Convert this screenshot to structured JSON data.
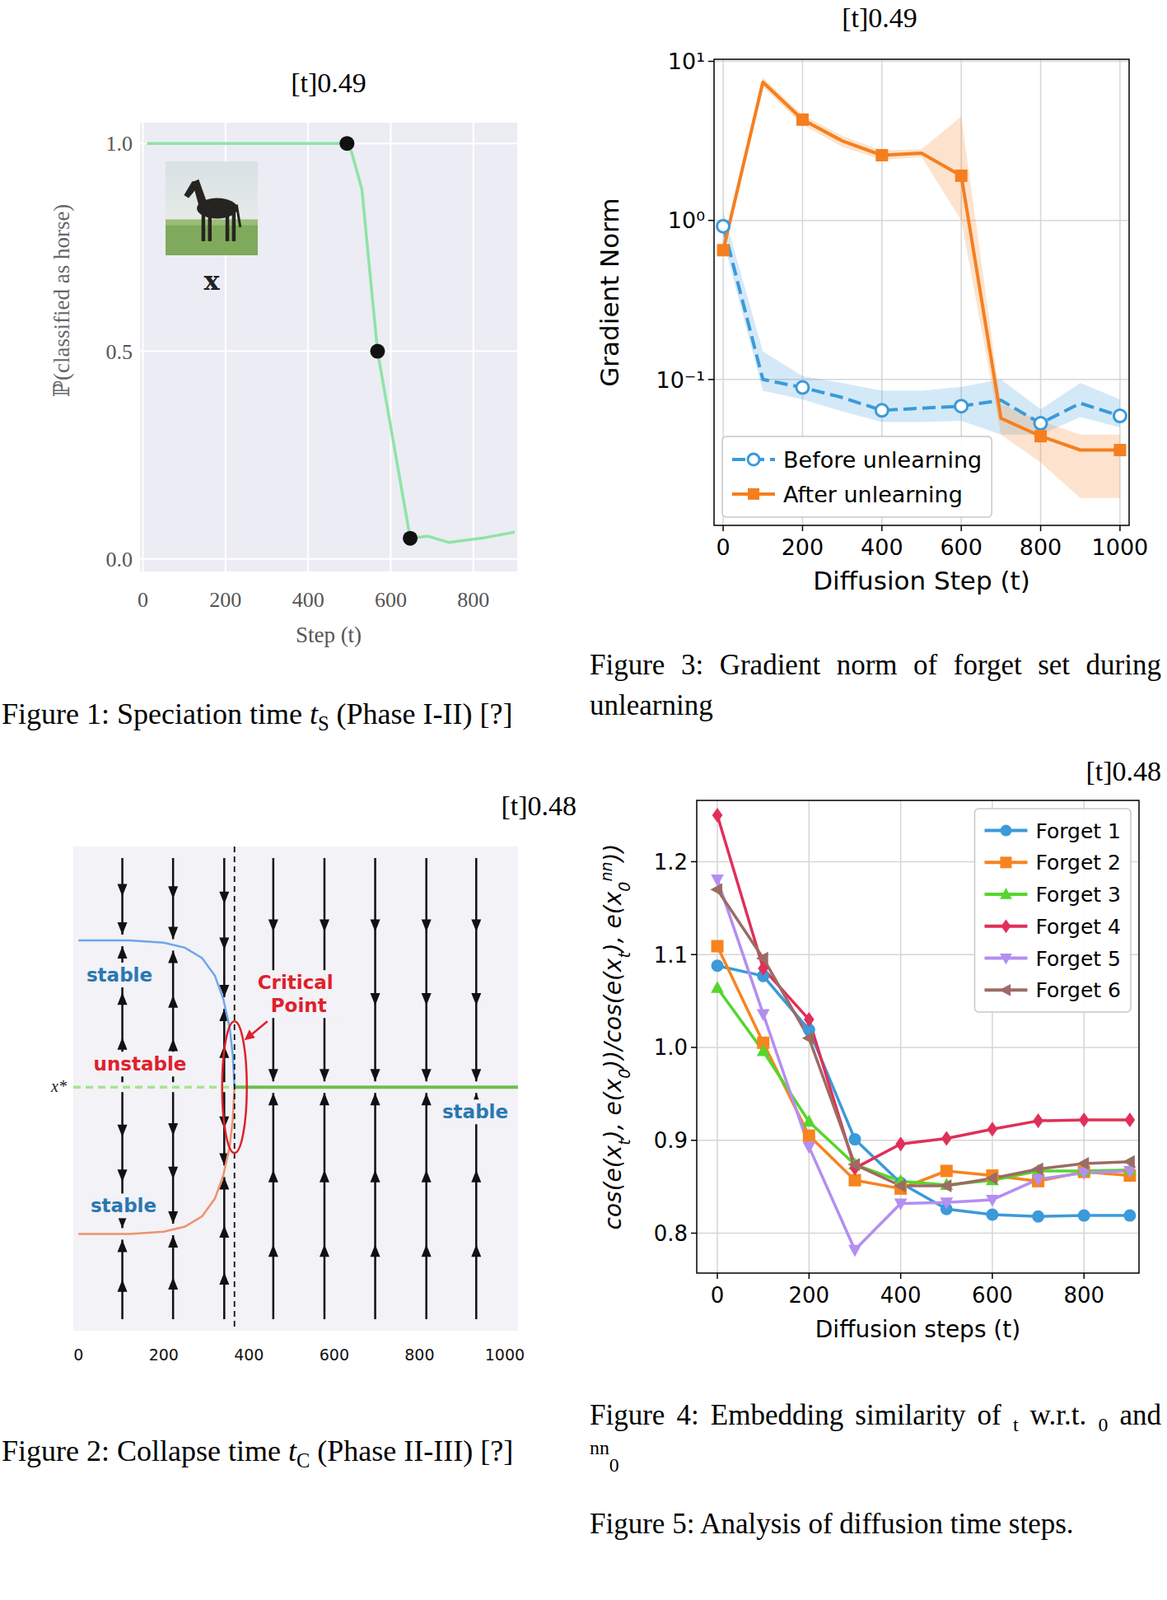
{
  "chart_data": [
    {
      "type": "line",
      "panel_title": "[t]0.49",
      "x_label": "Step (t)",
      "y_label": "ℙ(classified as horse)",
      "inset_label": "x",
      "xlim": [
        -7,
        906
      ],
      "xticks": [
        0,
        200,
        400,
        600,
        800
      ],
      "ylim": [
        -0.03,
        1.05
      ],
      "yticks": [
        {
          "value": 0,
          "label": "0.0"
        },
        0.5,
        {
          "value": 1,
          "label": "1.0"
        }
      ],
      "grid": true,
      "series": [
        {
          "type": "line",
          "color": "#8fe3a6",
          "x": [
            10,
            494,
            505,
            530,
            568,
            647,
            690,
            740,
            820,
            900
          ],
          "values": [
            1,
            1,
            0.98,
            0.89,
            0.5,
            0.05,
            0.055,
            0.04,
            0.05,
            0.065
          ]
        },
        {
          "type": "scatter",
          "color": "#111111",
          "marker": "circle",
          "x": [
            494,
            568,
            647
          ],
          "values": [
            1,
            0.5,
            0.05
          ]
        }
      ],
      "caption": [
        {
          "text": "Figure 1: Speciation time "
        },
        {
          "text": "t",
          "style": "italic"
        },
        {
          "text": "S",
          "style": "sub"
        },
        {
          "text": " (Phase I-II) [?]"
        }
      ]
    },
    {
      "type": "line",
      "log": "y",
      "panel_title": "[t]0.49",
      "x_label": "Diffusion Step (t)",
      "y_label": "Gradient Norm",
      "x": [
        0,
        100,
        200,
        300,
        400,
        500,
        600,
        700,
        800,
        900,
        1000
      ],
      "xlim": [
        -23,
        1023
      ],
      "xticks": [
        0,
        200,
        400,
        600,
        800,
        1000
      ],
      "ylim": [
        0.0121,
        10.3
      ],
      "yticks": [
        {
          "value": 0.1,
          "label": "10⁻¹"
        },
        {
          "value": 1,
          "label": "10⁰"
        },
        {
          "value": 10,
          "label": "10¹"
        }
      ],
      "grid": true,
      "legend": "lower left",
      "series": [
        {
          "name": "Before unlearning",
          "color": "#3b9ad9",
          "line_style": "dashed",
          "marker": "open-circle",
          "marked_x": [
            0,
            200,
            400,
            600,
            800,
            1000
          ],
          "values": [
            0.92,
            0.1,
            0.089,
            0.077,
            0.064,
            0.066,
            0.068,
            0.074,
            0.053,
            0.071,
            0.059
          ],
          "lower": [
            0.75,
            0.085,
            0.075,
            0.063,
            0.054,
            0.054,
            0.055,
            0.045,
            0.045,
            0.058,
            0.05
          ],
          "upper": [
            1.15,
            0.15,
            0.105,
            0.095,
            0.085,
            0.085,
            0.09,
            0.1,
            0.065,
            0.095,
            0.075
          ]
        },
        {
          "name": "After unlearning",
          "color": "#f57f1f",
          "line_style": "solid",
          "marker": "square",
          "marked_x": [
            0,
            200,
            400,
            600,
            800,
            1000
          ],
          "values": [
            0.65,
            7.4,
            4.3,
            3.16,
            2.57,
            2.65,
            1.91,
            0.057,
            0.044,
            0.036,
            0.036
          ],
          "lower": [
            0.6,
            6.9,
            4.0,
            2.9,
            2.4,
            2.5,
            1.0,
            0.045,
            0.03,
            0.018,
            0.018
          ],
          "upper": [
            0.7,
            7.9,
            4.6,
            3.4,
            2.75,
            2.8,
            4.5,
            0.07,
            0.055,
            0.045,
            0.045
          ]
        }
      ],
      "caption": [
        {
          "text": "Figure 3: Gradient norm of forget set during unlearning"
        }
      ]
    },
    {
      "type": "bifurcation",
      "panel_title": "[t]0.48",
      "xlim": [
        -12,
        1031
      ],
      "xticks": [
        0,
        200,
        400,
        600,
        800,
        1000
      ],
      "tick_labels": "x",
      "ylim": [
        -1.66,
        1.64
      ],
      "x_star": 0,
      "x_star_label": "x*",
      "critical_t": 366,
      "critical_label": "Critical Point",
      "region_labels": [
        "stable",
        "unstable",
        "stable",
        "stable"
      ],
      "field_t": [
        103,
        222,
        342,
        457,
        577,
        696,
        816,
        933
      ],
      "color": "#6cbf4f",
      "branches": [
        {
          "color": "#6ea6ea",
          "x": [
            0,
            120,
            200,
            250,
            290,
            320,
            340,
            355,
            362,
            366
          ],
          "values": [
            1,
            1,
            0.985,
            0.95,
            0.88,
            0.76,
            0.6,
            0.4,
            0.22,
            0
          ]
        },
        {
          "color": "#f0926a",
          "x": [
            0,
            120,
            200,
            250,
            290,
            320,
            340,
            355,
            362,
            366
          ],
          "values": [
            -1,
            -1,
            -0.985,
            -0.95,
            -0.88,
            -0.76,
            -0.6,
            -0.4,
            -0.22,
            0
          ]
        }
      ],
      "caption": [
        {
          "text": "Figure 2: Collapse time "
        },
        {
          "text": "t",
          "style": "italic"
        },
        {
          "text": "C",
          "style": "sub"
        },
        {
          "text": " (Phase II-III) [?]"
        }
      ]
    },
    {
      "type": "line",
      "panel_title": "[t]0.48",
      "x_label": "Diffusion steps (t)",
      "y_label": [
        {
          "text": "cos(e(x"
        },
        {
          "text": "t",
          "style": "sub"
        },
        {
          "text": "), e(x"
        },
        {
          "text": "0",
          "style": "sub"
        },
        {
          "text": "))/cos(e(x"
        },
        {
          "text": "t",
          "style": "sub"
        },
        {
          "text": "), e(x"
        },
        {
          "text": "0",
          "style": "sub"
        },
        {
          "text": "nn",
          "style": "sup"
        },
        {
          "text": "))"
        }
      ],
      "x": [
        0,
        100,
        200,
        300,
        400,
        500,
        600,
        700,
        800,
        900
      ],
      "xlim": [
        -45,
        920
      ],
      "xticks": [
        0,
        200,
        400,
        600,
        800
      ],
      "ylim": [
        0.757,
        1.266
      ],
      "yticks": [
        0.8,
        0.9,
        {
          "value": 1,
          "label": "1.0"
        },
        1.1,
        1.2
      ],
      "grid": true,
      "legend": "upper right",
      "series": [
        {
          "name": "Forget 1",
          "color": "#3b9ad9",
          "marker": "circle",
          "values": [
            1.088,
            1.077,
            1.019,
            0.901,
            0.854,
            0.826,
            0.82,
            0.818,
            0.819,
            0.819
          ]
        },
        {
          "name": "Forget 2",
          "color": "#f7841e",
          "marker": "square",
          "values": [
            1.109,
            1.005,
            0.905,
            0.857,
            0.848,
            0.867,
            0.862,
            0.856,
            0.866,
            0.862
          ]
        },
        {
          "name": "Forget 3",
          "color": "#55d62c",
          "marker": "triangle-up",
          "values": [
            1.064,
            0.996,
            0.92,
            0.874,
            0.856,
            0.852,
            0.857,
            0.867,
            0.867,
            0.868
          ]
        },
        {
          "name": "Forget 4",
          "color": "#e0305a",
          "marker": "diamond",
          "values": [
            1.25,
            1.085,
            1.03,
            0.87,
            0.896,
            0.902,
            0.912,
            0.921,
            0.922,
            0.922
          ]
        },
        {
          "name": "Forget 5",
          "color": "#b48ef0",
          "marker": "triangle-down",
          "values": [
            1.181,
            1.036,
            0.893,
            0.782,
            0.832,
            0.833,
            0.836,
            0.858,
            0.865,
            0.867
          ]
        },
        {
          "name": "Forget 6",
          "color": "#9c6b64",
          "marker": "triangle-left",
          "values": [
            1.17,
            1.096,
            1.01,
            0.874,
            0.851,
            0.851,
            0.859,
            0.869,
            0.875,
            0.877
          ]
        }
      ],
      "caption": [
        {
          "text": "Figure 4:  Embedding similarity of "
        },
        {
          "text": "t",
          "style": "sub"
        },
        {
          "text": " w.r.t. "
        },
        {
          "text": "0",
          "style": "sub"
        },
        {
          "text": " and "
        },
        {
          "text": "nn",
          "style": "sup"
        },
        {
          "text": "0",
          "style": "sub"
        }
      ]
    }
  ],
  "figure_caption": "Figure 5:  Analysis of diffusion time steps."
}
